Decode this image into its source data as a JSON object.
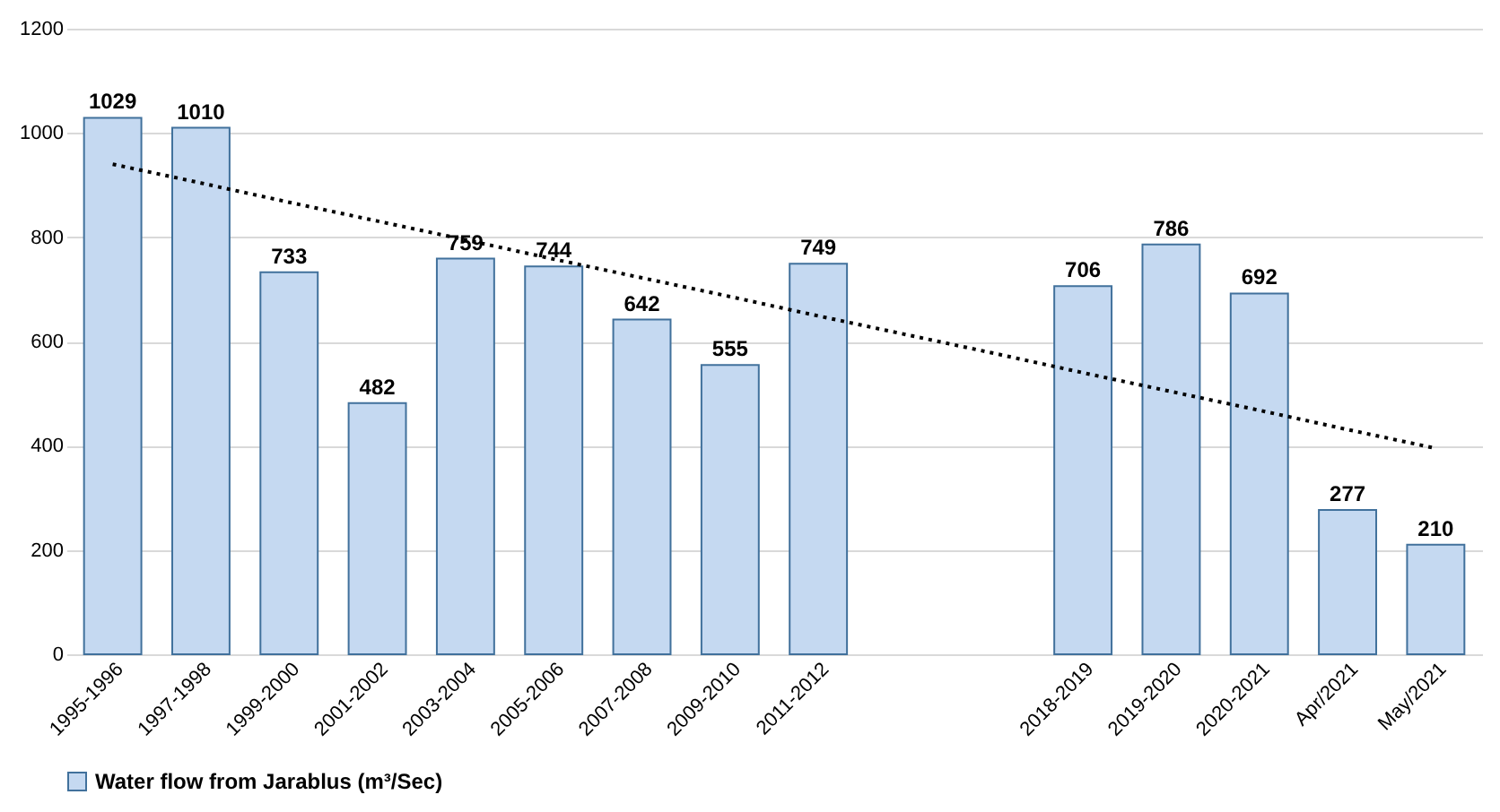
{
  "chart_data": {
    "type": "bar",
    "categories": [
      "1995-1996",
      "1997-1998",
      "1999-2000",
      "2001-2002",
      "2003-2004",
      "2005-2006",
      "2007-2008",
      "2009-2010",
      "2011-2012",
      null,
      null,
      "2018-2019",
      "2019-2020",
      "2020-2021",
      "Apr/2021",
      "May/2021"
    ],
    "series": [
      {
        "name": "Water flow from Jarablus (m³/Sec)",
        "color": "#c5d9f1",
        "values": [
          1029,
          1010,
          733,
          482,
          759,
          744,
          642,
          555,
          749,
          null,
          null,
          706,
          786,
          692,
          277,
          210
        ],
        "value_labels": [
          "1029",
          "1010",
          "733",
          "482",
          "759",
          "744",
          "642",
          "555",
          "749",
          null,
          null,
          "706",
          "786",
          "692",
          "277",
          "210"
        ]
      },
      {
        "type": "line",
        "color": "#000000",
        "line_style": "dotted",
        "values": [
          940,
          904,
          867,
          831,
          795,
          758,
          722,
          686,
          649,
          613,
          577,
          540,
          504,
          468,
          431,
          395
        ]
      }
    ],
    "ylim": [
      0,
      1200
    ],
    "yticks": [
      0,
      200,
      400,
      600,
      800,
      1000,
      1200
    ],
    "grid": "y",
    "legend": "bottom"
  }
}
